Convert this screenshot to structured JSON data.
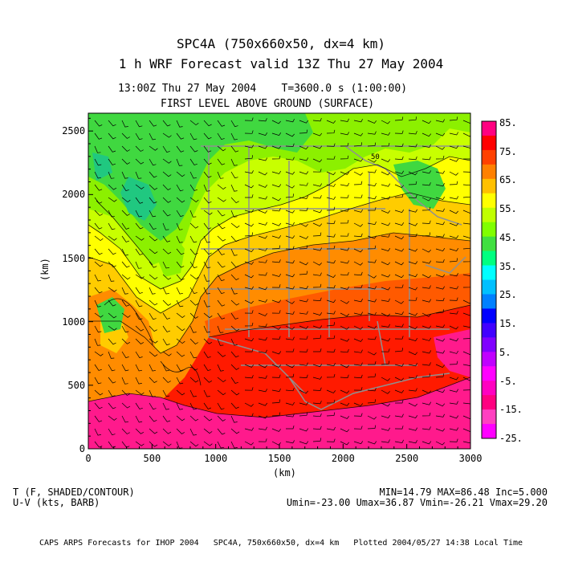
{
  "title": {
    "line1": "SPC4A (750x660x50, dx=4 km)",
    "line2": "1 h WRF Forecast valid 13Z Thu 27 May 2004",
    "line3": "13:00Z Thu 27 May 2004    T=3600.0 s (1:00:00)",
    "line4": "FIRST LEVEL ABOVE GROUND (SURFACE)"
  },
  "axes": {
    "x_label": "(km)",
    "y_label": "(km)",
    "x_ticks": [
      "0",
      "500",
      "1000",
      "1500",
      "2000",
      "2500",
      "3000"
    ],
    "y_ticks": [
      "0",
      "500",
      "1000",
      "1500",
      "2000",
      "2500"
    ],
    "x_range": [
      0,
      3000
    ],
    "y_range": [
      0,
      2640
    ]
  },
  "colorbar": {
    "labels": [
      "85.",
      "75.",
      "65.",
      "55.",
      "45.",
      "35.",
      "25.",
      "15.",
      "5.",
      "-5.",
      "-15.",
      "-25."
    ],
    "colors": [
      "#ff0080",
      "#ff0000",
      "#ff4000",
      "#ff8000",
      "#ffc000",
      "#ffff00",
      "#c0ff00",
      "#80ff00",
      "#40e040",
      "#00ff80",
      "#00ffff",
      "#00c0ff",
      "#0080ff",
      "#0000ff",
      "#4000ff",
      "#8000ff",
      "#c000ff",
      "#ff00ff",
      "#ff00c0",
      "#ff0080",
      "#ff40c0",
      "#ff00ff"
    ]
  },
  "map": {
    "palette": {
      "magenta": "#ff1a8c",
      "red": "#ff1a00",
      "orange_red": "#ff5a00",
      "orange": "#ff8c00",
      "yellow_orange": "#ffcc00",
      "yellow": "#ffff00",
      "yellow_green": "#c8ff00",
      "light_green": "#8cf000",
      "green": "#40d840",
      "teal_green": "#20c880",
      "boundary": "#909090"
    },
    "contour_label": "50"
  },
  "footer": {
    "left1": "T (F, SHADED/CONTOUR)",
    "left2": "U-V (kts, BARB)",
    "right1": "MIN=14.79 MAX=86.48 Inc=5.000",
    "right2": "Umin=-23.00 Umax=36.87 Vmin=-26.21 Vmax=29.20",
    "credit": "CAPS ARPS Forecasts for IHOP 2004   SPC4A, 750x660x50, dx=4 km   Plotted 2004/05/27 14:38 Local Time"
  }
}
